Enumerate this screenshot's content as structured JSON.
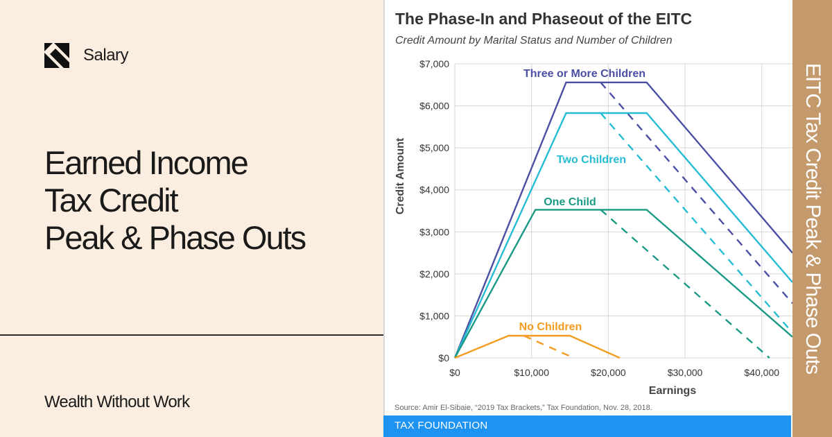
{
  "brand": {
    "name": "Salary"
  },
  "headline": {
    "lines": [
      "Earned Income",
      "Tax Credit",
      "Peak & Phase Outs"
    ]
  },
  "footer": {
    "text": "Wealth Without Work"
  },
  "side_banner": {
    "text": "EITC Tax Credit Peak & Phase Outs"
  },
  "card": {
    "source": "Source: Amir El-Sibaie, “2019 Tax Brackets,” Tax Foundation, Nov. 28, 2018.",
    "foundation": "TAX FOUNDATION"
  },
  "colors": {
    "background": "#fbeee0",
    "side_banner": "#c49a6c",
    "foundation_bar": "#1e93f2",
    "three_or_more": "#4a4fa3",
    "two": "#26bcd3",
    "one": "#1a9a84",
    "none": "#f39c21"
  },
  "chart_data": {
    "type": "line",
    "title": "The Phase-In and Phaseout of the EITC",
    "subtitle": "Credit Amount by Marital Status and Number of Children",
    "xlabel": "Earnings",
    "ylabel": "Credit Amount",
    "xlim": [
      0,
      44000
    ],
    "ylim": [
      0,
      7000
    ],
    "x_ticks": [
      0,
      10000,
      20000,
      30000,
      40000
    ],
    "x_tick_labels": [
      "$0",
      "$10,000",
      "$20,000",
      "$30,000",
      "$40,000"
    ],
    "y_ticks": [
      0,
      1000,
      2000,
      3000,
      4000,
      5000,
      6000,
      7000
    ],
    "y_tick_labels": [
      "$0",
      "$1,000",
      "$2,000",
      "$3,000",
      "$4,000",
      "$5,000",
      "$6,000",
      "$7,000"
    ],
    "grid": true,
    "series": [
      {
        "name": "Three or More Children",
        "color": "#4a4fa3",
        "solid": [
          [
            0,
            0
          ],
          [
            14500,
            6557
          ],
          [
            25000,
            6557
          ],
          [
            44000,
            2500
          ]
        ],
        "dashed": [
          [
            19000,
            6557
          ],
          [
            44000,
            1300
          ]
        ]
      },
      {
        "name": "Two Children",
        "color": "#26bcd3",
        "solid": [
          [
            0,
            0
          ],
          [
            14500,
            5828
          ],
          [
            25000,
            5828
          ],
          [
            44000,
            1800
          ]
        ],
        "dashed": [
          [
            19000,
            5828
          ],
          [
            44000,
            600
          ]
        ]
      },
      {
        "name": "One Child",
        "color": "#1a9a84",
        "solid": [
          [
            0,
            0
          ],
          [
            10500,
            3526
          ],
          [
            25000,
            3526
          ],
          [
            44000,
            500
          ]
        ],
        "dashed": [
          [
            19000,
            3526
          ],
          [
            41000,
            0
          ]
        ]
      },
      {
        "name": "No Children",
        "color": "#f39c21",
        "solid": [
          [
            0,
            0
          ],
          [
            7000,
            529
          ],
          [
            15000,
            529
          ],
          [
            21500,
            0
          ]
        ],
        "dashed": [
          [
            9000,
            529
          ],
          [
            15500,
            0
          ]
        ]
      }
    ]
  }
}
